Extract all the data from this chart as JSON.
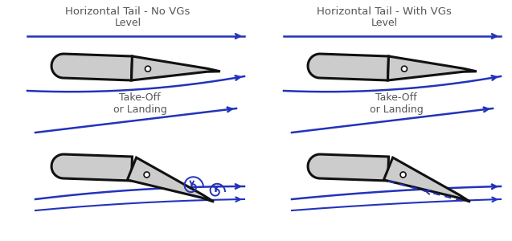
{
  "title_left": "Horizontal Tail - No VGs",
  "title_right": "Horizontal Tail - With VGs",
  "label_level": "Level",
  "label_takeoff": "Take-Off\nor Landing",
  "arrow_color": "#2233bb",
  "airfoil_fill": "#cccccc",
  "airfoil_edge": "#111111",
  "text_color": "#555555",
  "bg_color": "#ffffff",
  "title_fontsize": 9.5,
  "label_fontsize": 9,
  "dpi": 100,
  "figsize": [
    6.37,
    3.0
  ]
}
